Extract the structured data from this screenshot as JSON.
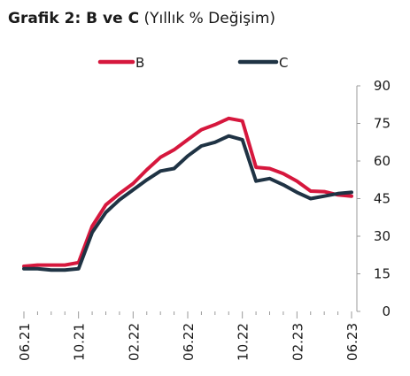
{
  "title": {
    "bold": "Grafik 2: B ve C",
    "light": "(Yıllık % Değişim)"
  },
  "chart_data": {
    "type": "line",
    "x": [
      "06.21",
      "07.21",
      "08.21",
      "09.21",
      "10.21",
      "11.21",
      "12.21",
      "01.22",
      "02.22",
      "03.22",
      "04.22",
      "05.22",
      "06.22",
      "07.22",
      "08.22",
      "09.22",
      "10.22",
      "11.22",
      "12.22",
      "01.23",
      "02.23",
      "03.23",
      "04.23",
      "05.23",
      "06.23"
    ],
    "x_tick_labels": [
      "06.21",
      "10.21",
      "02.22",
      "06.22",
      "10.22",
      "02.23",
      "06.23"
    ],
    "series": [
      {
        "name": "B",
        "color": "#d6173d",
        "values": [
          18.0,
          18.5,
          18.5,
          18.5,
          19.5,
          34.0,
          42.5,
          47.0,
          51.0,
          56.5,
          61.5,
          64.5,
          68.5,
          72.5,
          74.5,
          77.0,
          76.0,
          57.5,
          57.0,
          55.0,
          52.0,
          48.0,
          47.8,
          46.5,
          46.0
        ]
      },
      {
        "name": "C",
        "color": "#1f3344",
        "values": [
          17.0,
          17.0,
          16.5,
          16.5,
          17.0,
          31.5,
          39.5,
          44.5,
          48.5,
          52.5,
          56.0,
          57.0,
          62.0,
          66.0,
          67.5,
          70.0,
          68.5,
          52.0,
          53.0,
          50.5,
          47.5,
          45.0,
          46.0,
          47.0,
          47.5
        ]
      }
    ],
    "y_ticks": [
      0,
      15,
      30,
      45,
      60,
      75,
      90
    ],
    "ylim": [
      0,
      90
    ],
    "xlabel": "",
    "ylabel": "",
    "grid": false,
    "legend_position": "top-center",
    "axis_side": "right"
  }
}
